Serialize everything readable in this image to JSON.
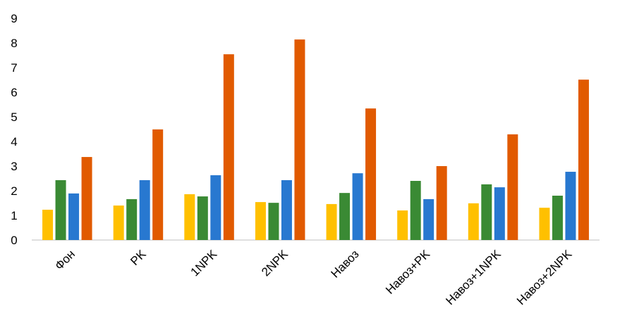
{
  "chart_data": {
    "type": "bar",
    "categories": [
      "Фон",
      "PK",
      "1NPK",
      "2NPK",
      "Навоз",
      "Навоз+PK",
      "Навоз+1NPK",
      "Навоз+2NPK"
    ],
    "series": [
      {
        "color": "#FFC000",
        "values": [
          1.23,
          1.4,
          1.86,
          1.54,
          1.46,
          1.2,
          1.49,
          1.31
        ]
      },
      {
        "color": "#3A8A34",
        "values": [
          2.43,
          1.66,
          1.77,
          1.51,
          1.91,
          2.4,
          2.26,
          1.8
        ]
      },
      {
        "color": "#2878D0",
        "values": [
          1.89,
          2.43,
          2.63,
          2.43,
          2.71,
          1.66,
          2.14,
          2.77
        ]
      },
      {
        "color": "#E15A00",
        "values": [
          3.37,
          4.49,
          7.54,
          8.14,
          5.34,
          3.0,
          4.29,
          6.51
        ]
      }
    ],
    "ylim": [
      0,
      9
    ],
    "yticks": [
      0,
      1,
      2,
      3,
      4,
      5,
      6,
      7,
      8,
      9
    ],
    "grid": false
  }
}
